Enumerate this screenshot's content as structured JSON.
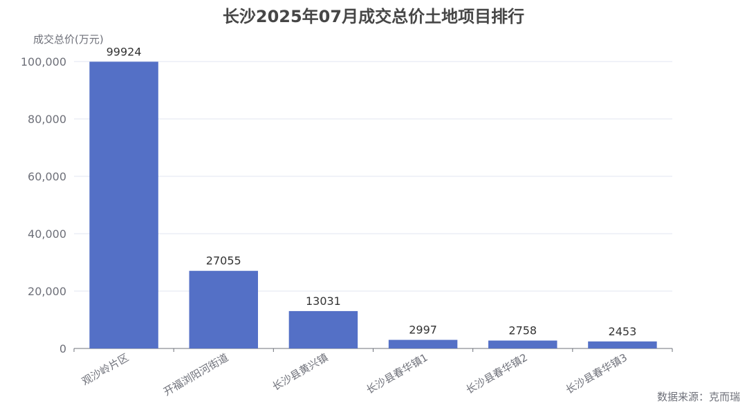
{
  "chart_data": {
    "type": "bar",
    "title": "长沙2025年07月成交总价土地项目排行",
    "ylabel": "成交总价(万元)",
    "xlabel": "",
    "categories": [
      "观沙岭片区",
      "开福浏阳河街道",
      "长沙县黄兴镇",
      "长沙县春华镇1",
      "长沙县春华镇2",
      "长沙县春华镇3"
    ],
    "values": [
      99924,
      27055,
      13031,
      2997,
      2758,
      2453
    ],
    "ylim": [
      0,
      100000
    ],
    "yticks": [
      0,
      20000,
      40000,
      60000,
      80000,
      100000
    ],
    "ytick_labels": [
      "0",
      "20,000",
      "40,000",
      "60,000",
      "80,000",
      "100,000"
    ],
    "grid": true,
    "bar_color": "#5470c6"
  },
  "source": "数据来源：克而瑞"
}
